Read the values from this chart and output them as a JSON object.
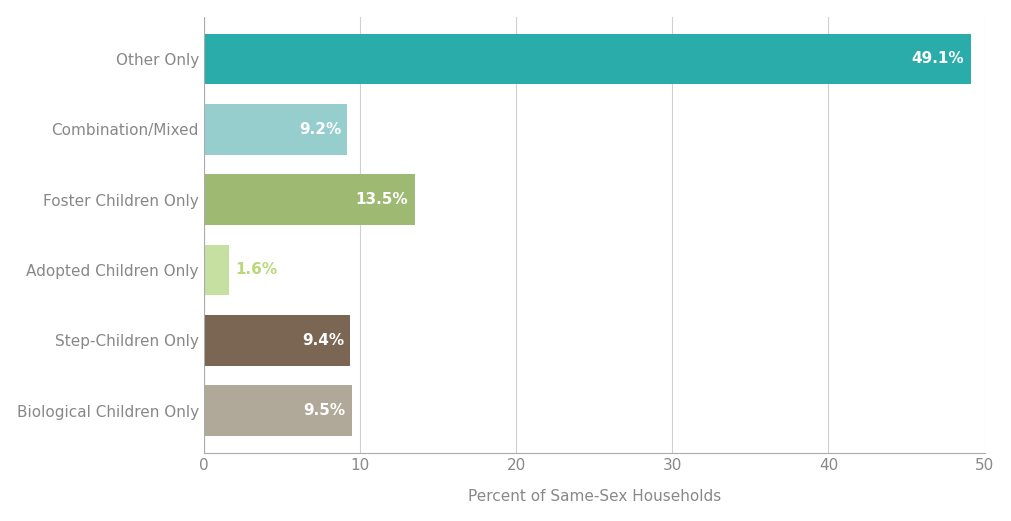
{
  "categories": [
    "Biological Children Only",
    "Step-Children Only",
    "Adopted Children Only",
    "Foster Children Only",
    "Combination/Mixed",
    "Other Only"
  ],
  "values": [
    49.1,
    9.2,
    13.5,
    1.6,
    9.4,
    9.5
  ],
  "bar_colors": [
    "#2aadaa",
    "#96cece",
    "#9eba72",
    "#c5e0a0",
    "#7a6652",
    "#b0a898"
  ],
  "label_colors": [
    "white",
    "white",
    "white",
    "#b8d87a",
    "white",
    "white"
  ],
  "xlabel": "Percent of Same-Sex Households",
  "xlim": [
    0,
    50
  ],
  "xticks": [
    0,
    10,
    20,
    30,
    40,
    50
  ],
  "background_color": "#ffffff",
  "bar_height": 0.72,
  "label_fontsize": 11,
  "tick_label_fontsize": 11,
  "xlabel_fontsize": 11,
  "grid_color": "#d0d0d0",
  "axis_label_color": "#888888",
  "y_label_color": "#888888"
}
